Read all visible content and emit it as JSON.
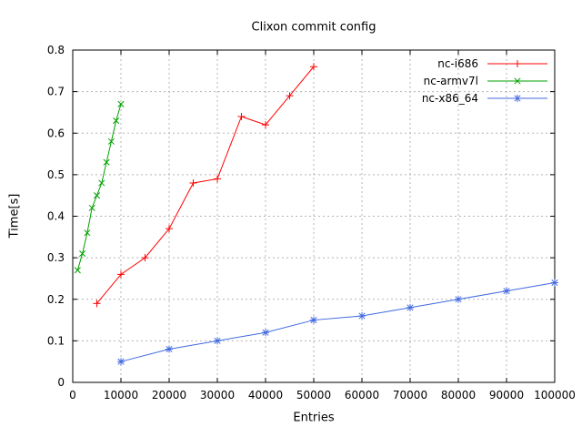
{
  "chart_data": {
    "type": "line",
    "title": "Clixon commit config",
    "xlabel": "Entries",
    "ylabel": "Time[s]",
    "xlim": [
      0,
      100000
    ],
    "ylim": [
      0,
      0.8
    ],
    "grid": true,
    "legend_position": "top-right",
    "axis_color": "#000000",
    "grid_color": "#b4b4b4",
    "xtick_values": [
      0,
      10000,
      20000,
      30000,
      40000,
      50000,
      60000,
      70000,
      80000,
      90000,
      100000
    ],
    "xtick_labels": [
      "0",
      "10000",
      "20000",
      "30000",
      "40000",
      "50000",
      "60000",
      "70000",
      "80000",
      "90000",
      "100000"
    ],
    "ytick_values": [
      0,
      0.1,
      0.2,
      0.3,
      0.4,
      0.5,
      0.6,
      0.7,
      0.8
    ],
    "ytick_labels": [
      "0",
      "0.1",
      "0.2",
      "0.3",
      "0.4",
      "0.5",
      "0.6",
      "0.7",
      "0.8"
    ],
    "series": [
      {
        "name": "nc-i686",
        "color": "#ff0000",
        "marker": "plus",
        "x": [
          5000,
          10000,
          15000,
          20000,
          25000,
          30000,
          35000,
          40000,
          45000,
          50000
        ],
        "y": [
          0.19,
          0.26,
          0.3,
          0.37,
          0.48,
          0.49,
          0.64,
          0.62,
          0.69,
          0.76
        ]
      },
      {
        "name": "nc-armv7l",
        "color": "#00a000",
        "marker": "cross",
        "x": [
          1000,
          2000,
          3000,
          4000,
          5000,
          6000,
          7000,
          8000,
          9000,
          10000
        ],
        "y": [
          0.27,
          0.31,
          0.36,
          0.42,
          0.45,
          0.48,
          0.53,
          0.58,
          0.63,
          0.67
        ]
      },
      {
        "name": "nc-x86_64",
        "color": "#4169e1",
        "marker": "asterisk",
        "x": [
          10000,
          20000,
          30000,
          40000,
          50000,
          60000,
          70000,
          80000,
          90000,
          100000
        ],
        "y": [
          0.05,
          0.08,
          0.1,
          0.12,
          0.15,
          0.16,
          0.18,
          0.2,
          0.22,
          0.24
        ]
      }
    ]
  }
}
